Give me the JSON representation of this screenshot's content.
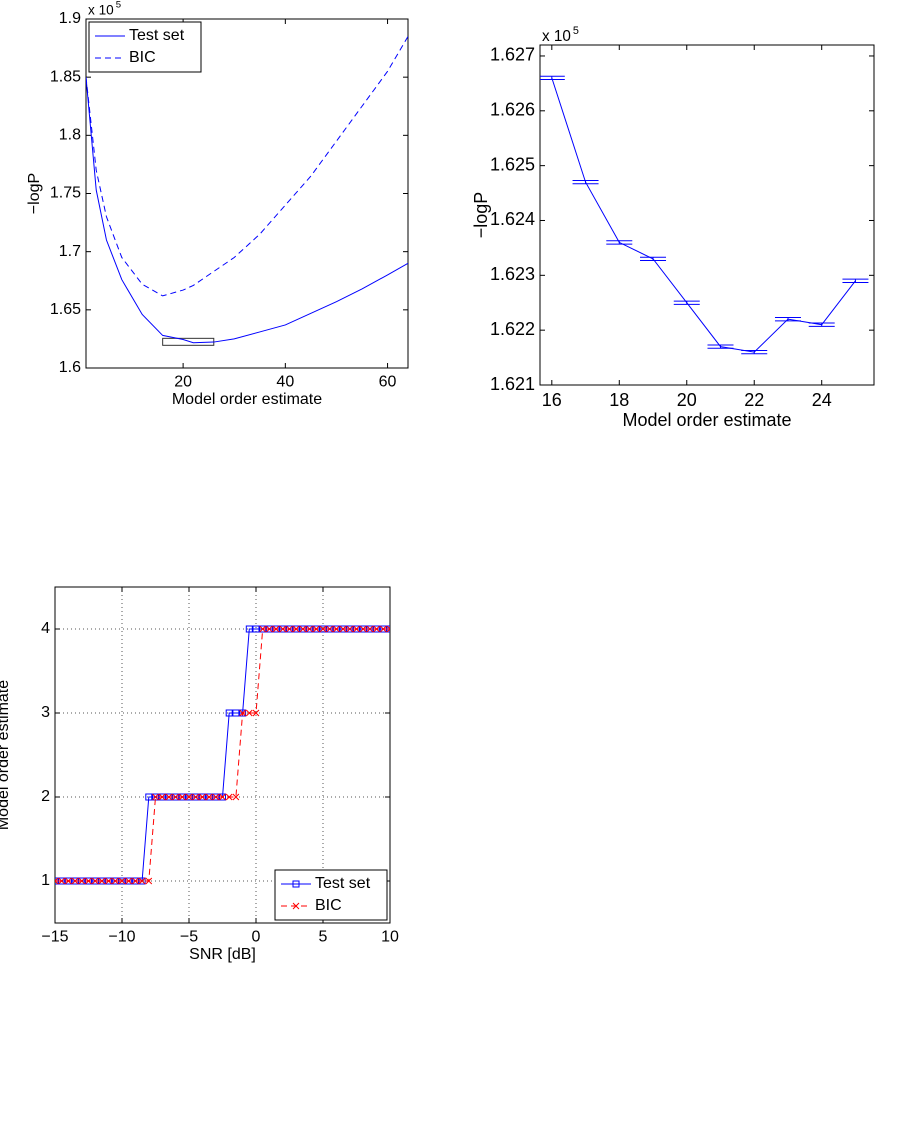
{
  "chart_data": [
    {
      "type": "line",
      "x_label": "Model order estimate",
      "y_label": "−logP",
      "y_multiplier": "x 10",
      "y_multiplier_exp": "5",
      "x": [
        1,
        3,
        5,
        8,
        12,
        16,
        20,
        22,
        26,
        30,
        35,
        40,
        45,
        50,
        55,
        60,
        64
      ],
      "series": [
        {
          "name": "Test set",
          "color": "#0000ff",
          "line_style": "solid",
          "values": [
            1.85,
            1.753,
            1.71,
            1.676,
            1.646,
            1.628,
            1.6245,
            1.6217,
            1.6223,
            1.625,
            1.631,
            1.637,
            1.647,
            1.657,
            1.668,
            1.68,
            1.69
          ]
        },
        {
          "name": "BIC",
          "color": "#0000ff",
          "line_style": "dashed",
          "values": [
            1.85,
            1.77,
            1.73,
            1.695,
            1.672,
            1.662,
            1.667,
            1.671,
            1.683,
            1.695,
            1.715,
            1.74,
            1.765,
            1.795,
            1.825,
            1.855,
            1.885
          ]
        }
      ],
      "inset_box": {
        "x": [
          16,
          26
        ],
        "y": [
          1.6195,
          1.6255
        ]
      },
      "xlim": [
        1,
        64
      ],
      "xticks": [
        20,
        40,
        60
      ],
      "ylim": [
        1.6,
        1.9
      ],
      "yticks": [
        1.6,
        1.65,
        1.7,
        1.75,
        1.8,
        1.85,
        1.9
      ],
      "grid": false,
      "legend": "upper left"
    },
    {
      "type": "errorbar",
      "x_label": "Model order estimate",
      "y_label": "−logP",
      "y_multiplier": "x 10",
      "y_multiplier_exp": "5",
      "x": [
        16,
        17,
        18,
        19,
        20,
        21,
        22,
        23,
        24,
        25
      ],
      "series": [
        {
          "name": "Test set",
          "color": "#0000ff",
          "line_style": "solid",
          "values": [
            1.6266,
            1.6247,
            1.6236,
            1.6233,
            1.6225,
            1.6217,
            1.6216,
            1.6222,
            1.6221,
            1.6229
          ],
          "errors": [
            3e-05,
            3e-05,
            3e-05,
            3e-05,
            3e-05,
            3e-05,
            3e-05,
            3e-05,
            3e-05,
            3e-05
          ]
        }
      ],
      "xlim": [
        15.65,
        25.55
      ],
      "xticks": [
        16,
        18,
        20,
        22,
        24
      ],
      "ylim": [
        1.621,
        1.6272
      ],
      "yticks": [
        1.621,
        1.622,
        1.623,
        1.624,
        1.625,
        1.626,
        1.627
      ],
      "grid": false
    },
    {
      "type": "line",
      "x_label": "SNR [dB]",
      "y_label": "Model order estimate",
      "x": [
        -15,
        -14.5,
        -14,
        -13.5,
        -13,
        -12.5,
        -12,
        -11.5,
        -11,
        -10.5,
        -10,
        -9.5,
        -9,
        -8.5,
        -8,
        -7.5,
        -7,
        -6.5,
        -6,
        -5.5,
        -5,
        -4.5,
        -4,
        -3.5,
        -3,
        -2.5,
        -2,
        -1.5,
        -1,
        -0.5,
        0,
        0.5,
        1,
        1.5,
        2,
        2.5,
        3,
        3.5,
        4,
        4.5,
        5,
        5.5,
        6,
        6.5,
        7,
        7.5,
        8,
        8.5,
        9,
        9.5,
        10
      ],
      "series": [
        {
          "name": "Test set",
          "color": "#0000ff",
          "line_style": "solid",
          "marker": "square",
          "values": [
            1,
            1,
            1,
            1,
            1,
            1,
            1,
            1,
            1,
            1,
            1,
            1,
            1,
            1,
            2,
            2,
            2,
            2,
            2,
            2,
            2,
            2,
            2,
            2,
            2,
            2,
            3,
            3,
            3,
            4,
            4,
            4,
            4,
            4,
            4,
            4,
            4,
            4,
            4,
            4,
            4,
            4,
            4,
            4,
            4,
            4,
            4,
            4,
            4,
            4,
            4
          ]
        },
        {
          "name": "BIC",
          "color": "#ff0000",
          "line_style": "dashed",
          "marker": "x",
          "values": [
            1,
            1,
            1,
            1,
            1,
            1,
            1,
            1,
            1,
            1,
            1,
            1,
            1,
            1,
            1,
            2,
            2,
            2,
            2,
            2,
            2,
            2,
            2,
            2,
            2,
            2,
            2,
            2,
            3,
            3,
            3,
            4,
            4,
            4,
            4,
            4,
            4,
            4,
            4,
            4,
            4,
            4,
            4,
            4,
            4,
            4,
            4,
            4,
            4,
            4,
            4
          ]
        }
      ],
      "xlim": [
        -15,
        10
      ],
      "xticks": [
        {
          "value": -15,
          "label": "−15"
        },
        {
          "value": -10,
          "label": "−10"
        },
        {
          "value": -5,
          "label": "−5"
        },
        0,
        5,
        10
      ],
      "ylim": [
        0.5,
        4.5
      ],
      "yticks": [
        1,
        2,
        3,
        4
      ],
      "grid": true,
      "legend": "lower right"
    }
  ]
}
